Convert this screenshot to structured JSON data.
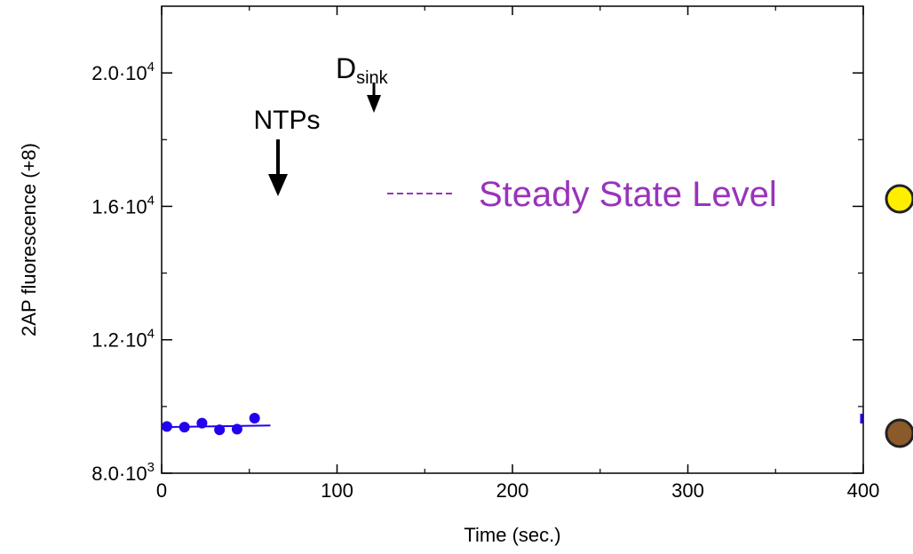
{
  "chart_data": {
    "type": "scatter",
    "title": "",
    "xlabel": "Time (sec.)",
    "ylabel": "2AP fluorescence (+8)",
    "xlim": [
      0,
      400
    ],
    "ylim": [
      8000,
      22000
    ],
    "x_ticks": [
      {
        "value": 0,
        "label": "0"
      },
      {
        "value": 100,
        "label": "100"
      },
      {
        "value": 200,
        "label": "200"
      },
      {
        "value": 300,
        "label": "300"
      },
      {
        "value": 400,
        "label": "400"
      }
    ],
    "y_ticks": [
      {
        "value": 8000,
        "base": "8.0·10",
        "exp": "3"
      },
      {
        "value": 12000,
        "base": "1.2·10",
        "exp": "4"
      },
      {
        "value": 16000,
        "base": "1.6·10",
        "exp": "4"
      },
      {
        "value": 20000,
        "base": "2.0·10",
        "exp": "4"
      }
    ],
    "series": [
      {
        "color": "#2200ee",
        "points": [
          {
            "x": 3,
            "y": 9400
          },
          {
            "x": 13,
            "y": 9380
          },
          {
            "x": 23,
            "y": 9500
          },
          {
            "x": 33,
            "y": 9300
          },
          {
            "x": 43,
            "y": 9320
          },
          {
            "x": 53,
            "y": 9650
          }
        ],
        "fit": [
          {
            "x": 0,
            "y": 9380
          },
          {
            "x": 62,
            "y": 9430
          }
        ]
      }
    ],
    "annotations": {
      "ntps": {
        "label": "NTPs",
        "x": 67
      },
      "dsink": {
        "label_main": "D",
        "label_sub": "sink",
        "x": 122
      },
      "steady_state": {
        "label": "Steady State Level",
        "color": "#9933bb"
      }
    },
    "legend_markers": [
      {
        "name": "yellow-marker",
        "color": "#ffee00"
      },
      {
        "name": "brown-marker",
        "color": "#8b5a2b"
      }
    ],
    "grid": false
  }
}
